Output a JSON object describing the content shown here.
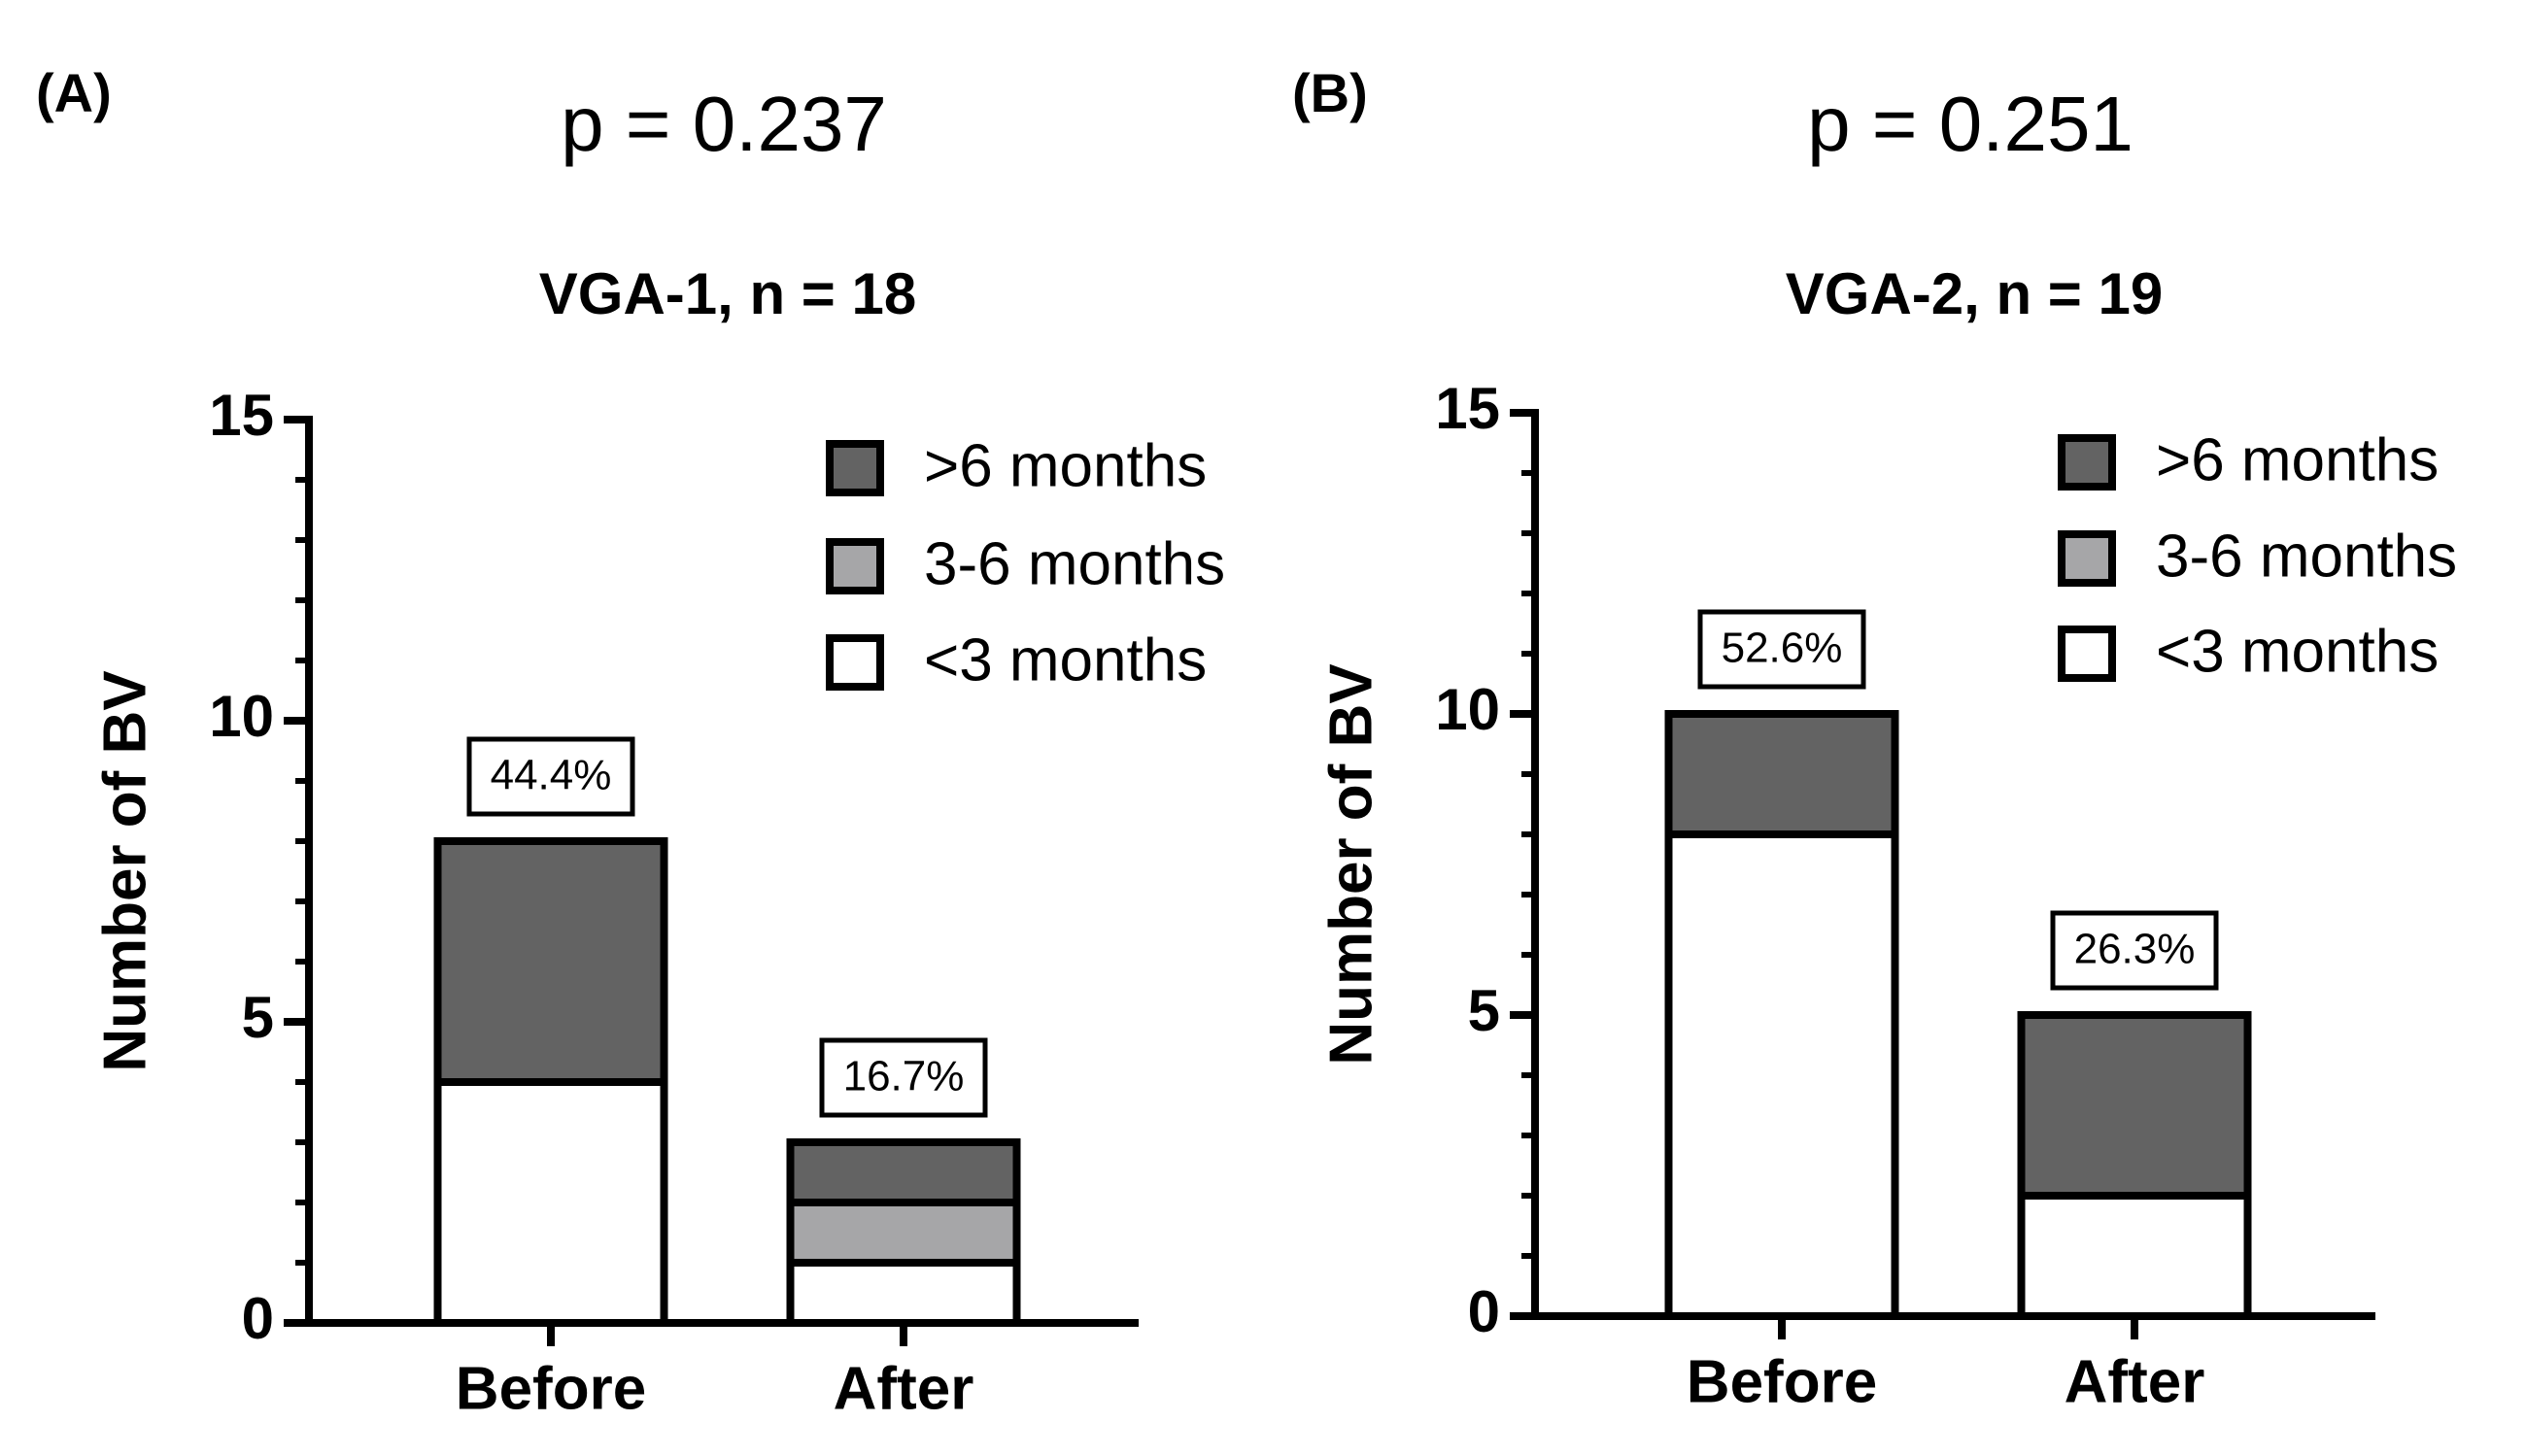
{
  "chart_data": [
    {
      "type": "stacked_bar",
      "panel": "(A)",
      "p_value": "p = 0.237",
      "title": "VGA-1, n = 18",
      "ylabel": "Number of BV",
      "categories": [
        "Before",
        "After"
      ],
      "series": [
        {
          "name": ">6 months",
          "color": "#636363",
          "values": [
            4,
            1
          ]
        },
        {
          "name": "3-6 months",
          "color": "#a6a6a8",
          "values": [
            0,
            1
          ]
        },
        {
          "name": "<3 months",
          "color": "#ffffff",
          "values": [
            4,
            1
          ]
        }
      ],
      "annotations": [
        "44.4%",
        "16.7%"
      ],
      "ylim": [
        0,
        15
      ],
      "yticks": [
        0,
        5,
        10,
        15
      ],
      "legend": "upper right"
    },
    {
      "type": "stacked_bar",
      "panel": "(B)",
      "p_value": "p = 0.251",
      "title": "VGA-2, n = 19",
      "ylabel": "Number of BV",
      "categories": [
        "Before",
        "After"
      ],
      "series": [
        {
          "name": ">6 months",
          "color": "#636363",
          "values": [
            2,
            3
          ]
        },
        {
          "name": "3-6 months",
          "color": "#a6a6a8",
          "values": [
            0,
            0
          ]
        },
        {
          "name": "<3 months",
          "color": "#ffffff",
          "values": [
            8,
            2
          ]
        }
      ],
      "annotations": [
        "52.6%",
        "26.3%"
      ],
      "ylim": [
        0,
        15
      ],
      "yticks": [
        0,
        5,
        10,
        15
      ],
      "legend": "upper right"
    }
  ]
}
